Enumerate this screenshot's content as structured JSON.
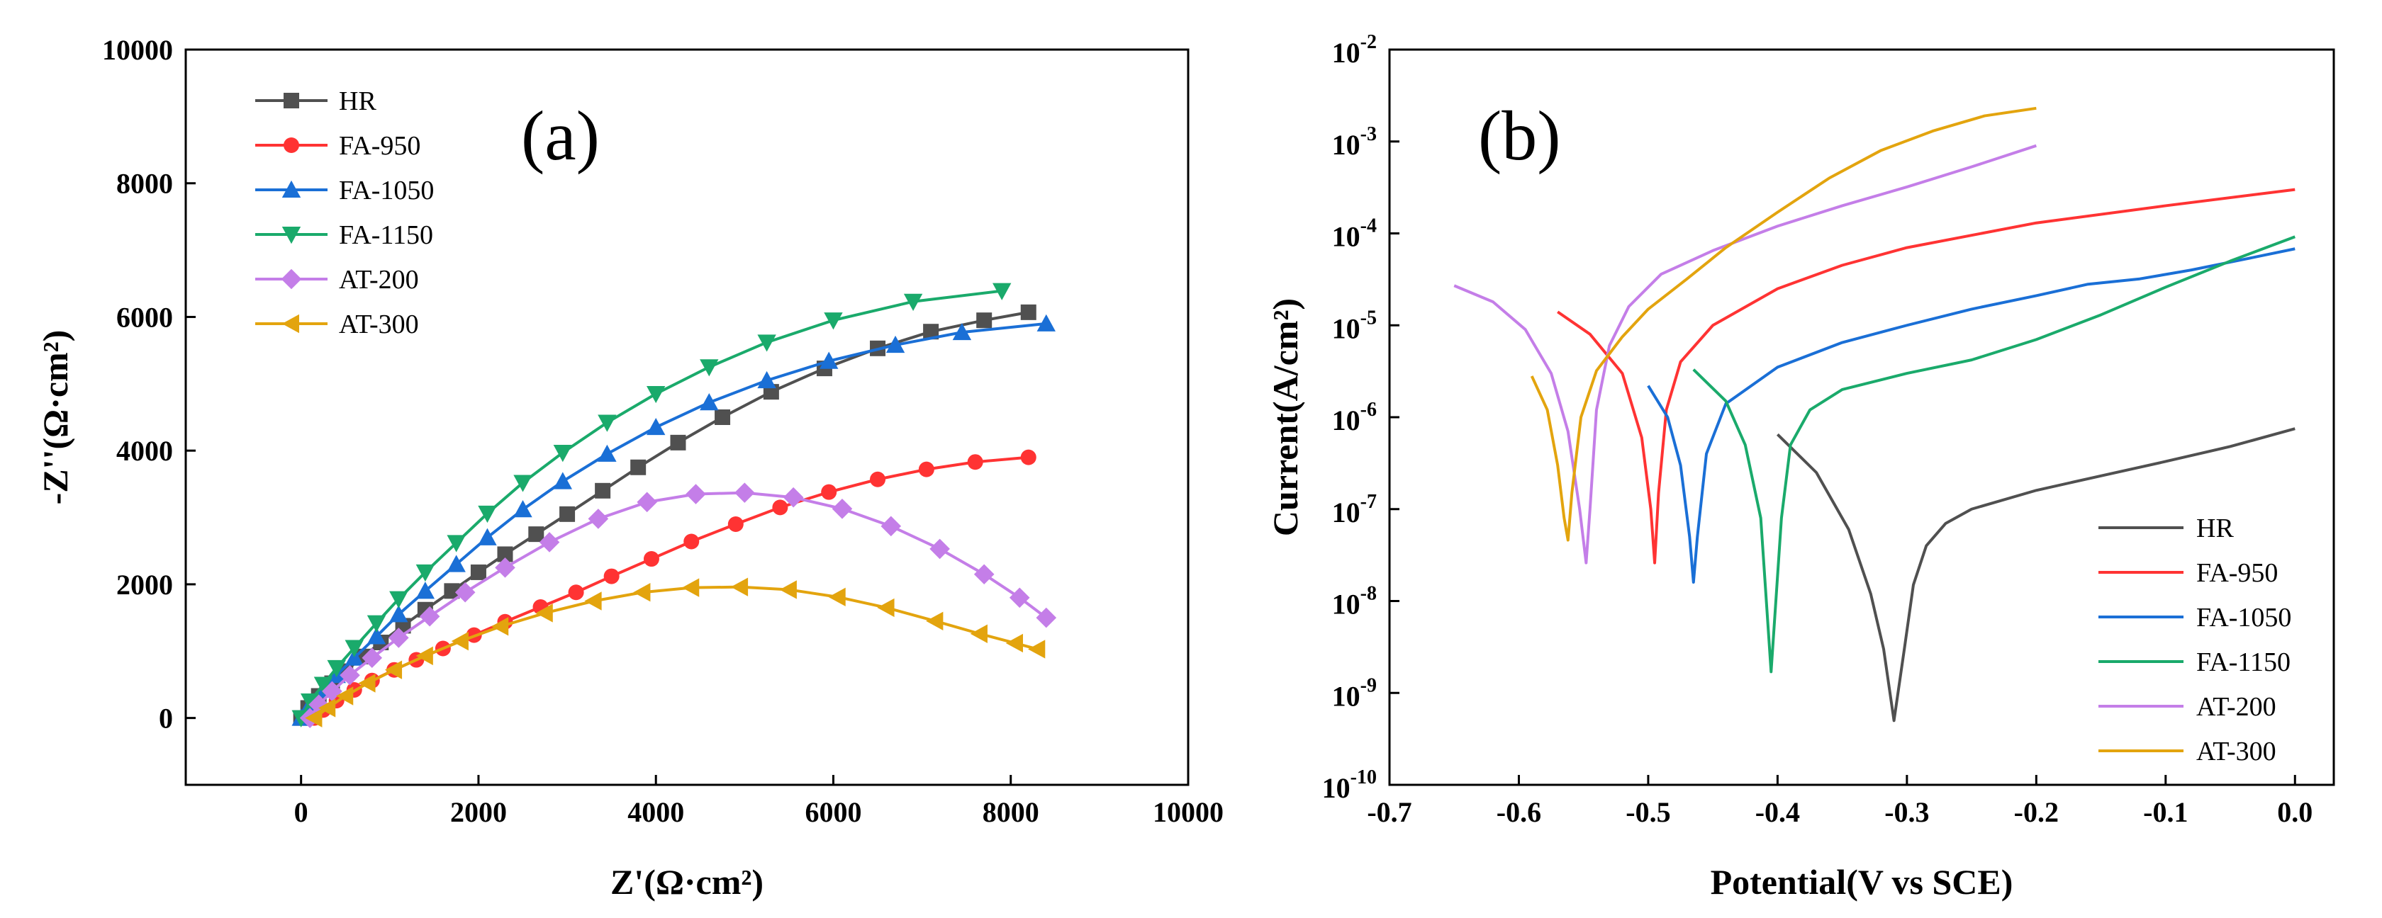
{
  "colors": {
    "HR": "#505050",
    "FA-950": "#ff3333",
    "FA-1050": "#1a6fd6",
    "FA-1150": "#1aaa6b",
    "AT-200": "#c47ee8",
    "AT-300": "#e3a40e"
  },
  "chart_data": [
    {
      "type": "line",
      "panel_label": "(a)",
      "xlabel": "Z'(Ω·cm²)",
      "ylabel": "-Z''(Ω·cm²)",
      "xlim": [
        -1300,
        10000
      ],
      "ylim": [
        -1000,
        10000
      ],
      "xticks": [
        0,
        2000,
        4000,
        6000,
        8000,
        10000
      ],
      "yticks": [
        0,
        2000,
        4000,
        6000,
        8000,
        10000
      ],
      "xtick_labels": [
        "0",
        "2000",
        "4000",
        "6000",
        "8000",
        "10000"
      ],
      "ytick_labels": [
        "0",
        "2000",
        "4000",
        "6000",
        "8000",
        "10000"
      ],
      "grid": false,
      "legend_position": "top-left",
      "series": [
        {
          "name": "HR",
          "marker": "square",
          "points": [
            [
              0,
              0
            ],
            [
              80,
              150
            ],
            [
              200,
              330
            ],
            [
              350,
              520
            ],
            [
              500,
              700
            ],
            [
              700,
              920
            ],
            [
              900,
              1130
            ],
            [
              1150,
              1380
            ],
            [
              1400,
              1620
            ],
            [
              1700,
              1900
            ],
            [
              2000,
              2180
            ],
            [
              2300,
              2450
            ],
            [
              2650,
              2750
            ],
            [
              3000,
              3050
            ],
            [
              3400,
              3400
            ],
            [
              3800,
              3750
            ],
            [
              4250,
              4120
            ],
            [
              4750,
              4500
            ],
            [
              5300,
              4880
            ],
            [
              5900,
              5230
            ],
            [
              6500,
              5530
            ],
            [
              7100,
              5780
            ],
            [
              7700,
              5950
            ],
            [
              8200,
              6070
            ]
          ]
        },
        {
          "name": "FA-950",
          "marker": "circle",
          "points": [
            [
              150,
              0
            ],
            [
              250,
              120
            ],
            [
              400,
              260
            ],
            [
              600,
              420
            ],
            [
              800,
              560
            ],
            [
              1050,
              720
            ],
            [
              1300,
              870
            ],
            [
              1600,
              1040
            ],
            [
              1950,
              1240
            ],
            [
              2300,
              1440
            ],
            [
              2700,
              1660
            ],
            [
              3100,
              1880
            ],
            [
              3500,
              2120
            ],
            [
              3950,
              2380
            ],
            [
              4400,
              2640
            ],
            [
              4900,
              2900
            ],
            [
              5400,
              3150
            ],
            [
              5950,
              3380
            ],
            [
              6500,
              3570
            ],
            [
              7050,
              3720
            ],
            [
              7600,
              3830
            ],
            [
              8200,
              3900
            ]
          ]
        },
        {
          "name": "FA-1050",
          "marker": "triangle-up",
          "points": [
            [
              0,
              0
            ],
            [
              100,
              200
            ],
            [
              250,
              420
            ],
            [
              400,
              640
            ],
            [
              600,
              900
            ],
            [
              850,
              1220
            ],
            [
              1100,
              1550
            ],
            [
              1400,
              1900
            ],
            [
              1750,
              2300
            ],
            [
              2100,
              2700
            ],
            [
              2500,
              3120
            ],
            [
              2950,
              3540
            ],
            [
              3450,
              3950
            ],
            [
              4000,
              4350
            ],
            [
              4600,
              4720
            ],
            [
              5250,
              5050
            ],
            [
              5950,
              5340
            ],
            [
              6700,
              5580
            ],
            [
              7450,
              5770
            ],
            [
              8400,
              5900
            ]
          ]
        },
        {
          "name": "FA-1150",
          "marker": "triangle-down",
          "points": [
            [
              0,
              0
            ],
            [
              100,
              250
            ],
            [
              250,
              500
            ],
            [
              400,
              750
            ],
            [
              600,
              1050
            ],
            [
              850,
              1420
            ],
            [
              1100,
              1780
            ],
            [
              1400,
              2180
            ],
            [
              1750,
              2620
            ],
            [
              2100,
              3060
            ],
            [
              2500,
              3520
            ],
            [
              2950,
              3970
            ],
            [
              3450,
              4420
            ],
            [
              4000,
              4850
            ],
            [
              4600,
              5250
            ],
            [
              5250,
              5620
            ],
            [
              6000,
              5950
            ],
            [
              6900,
              6230
            ],
            [
              7900,
              6390
            ]
          ]
        },
        {
          "name": "AT-200",
          "marker": "diamond",
          "points": [
            [
              100,
              0
            ],
            [
              200,
              200
            ],
            [
              350,
              400
            ],
            [
              550,
              640
            ],
            [
              800,
              900
            ],
            [
              1100,
              1200
            ],
            [
              1450,
              1520
            ],
            [
              1850,
              1880
            ],
            [
              2300,
              2250
            ],
            [
              2800,
              2630
            ],
            [
              3350,
              2980
            ],
            [
              3900,
              3230
            ],
            [
              4450,
              3350
            ],
            [
              5000,
              3370
            ],
            [
              5550,
              3300
            ],
            [
              6100,
              3130
            ],
            [
              6650,
              2870
            ],
            [
              7200,
              2530
            ],
            [
              7700,
              2150
            ],
            [
              8100,
              1800
            ],
            [
              8400,
              1500
            ]
          ]
        },
        {
          "name": "AT-300",
          "marker": "triangle-left",
          "points": [
            [
              150,
              0
            ],
            [
              300,
              150
            ],
            [
              500,
              330
            ],
            [
              750,
              520
            ],
            [
              1050,
              720
            ],
            [
              1400,
              930
            ],
            [
              1800,
              1150
            ],
            [
              2250,
              1370
            ],
            [
              2750,
              1570
            ],
            [
              3300,
              1750
            ],
            [
              3850,
              1880
            ],
            [
              4400,
              1950
            ],
            [
              4950,
              1960
            ],
            [
              5500,
              1920
            ],
            [
              6050,
              1810
            ],
            [
              6600,
              1650
            ],
            [
              7150,
              1450
            ],
            [
              7650,
              1260
            ],
            [
              8050,
              1120
            ],
            [
              8300,
              1030
            ]
          ]
        }
      ]
    },
    {
      "type": "line",
      "panel_label": "(b)",
      "xlabel": "Potential(V vs SCE)",
      "ylabel": "Current(A/cm²)",
      "log_y": true,
      "xlim": [
        -0.7,
        0.03
      ],
      "ylim": [
        1e-10,
        0.01
      ],
      "xticks": [
        -0.7,
        -0.6,
        -0.5,
        -0.4,
        -0.3,
        -0.2,
        -0.1,
        0.0
      ],
      "xtick_labels": [
        "-0.7",
        "-0.6",
        "-0.5",
        "-0.4",
        "-0.3",
        "-0.2",
        "-0.1",
        "0.0"
      ],
      "ytick_exponents": [
        -10,
        -9,
        -8,
        -7,
        -6,
        -5,
        -4,
        -3,
        -2
      ],
      "ytick_labels": [
        "10",
        "10",
        "10",
        "10",
        "10",
        "10",
        "10",
        "10",
        "10"
      ],
      "ytick_superscripts": [
        "-10",
        "-9",
        "-8",
        "-7",
        "-6",
        "-5",
        "-4",
        "-3",
        "-2"
      ],
      "grid": false,
      "legend_position": "bottom-right",
      "series": [
        {
          "name": "HR",
          "points": [
            [
              -0.4,
              6.5e-07
            ],
            [
              -0.37,
              2.5e-07
            ],
            [
              -0.345,
              6e-08
            ],
            [
              -0.328,
              1.2e-08
            ],
            [
              -0.318,
              3e-09
            ],
            [
              -0.31,
              5e-10
            ],
            [
              -0.302,
              3e-09
            ],
            [
              -0.295,
              1.5e-08
            ],
            [
              -0.285,
              4e-08
            ],
            [
              -0.27,
              7e-08
            ],
            [
              -0.25,
              1e-07
            ],
            [
              -0.2,
              1.6e-07
            ],
            [
              -0.15,
              2.3e-07
            ],
            [
              -0.1,
              3.3e-07
            ],
            [
              -0.05,
              4.8e-07
            ],
            [
              0.0,
              7.5e-07
            ]
          ]
        },
        {
          "name": "FA-950",
          "points": [
            [
              -0.57,
              1.4e-05
            ],
            [
              -0.545,
              8e-06
            ],
            [
              -0.52,
              3e-06
            ],
            [
              -0.505,
              6e-07
            ],
            [
              -0.498,
              1e-07
            ],
            [
              -0.495,
              2.6e-08
            ],
            [
              -0.492,
              1.5e-07
            ],
            [
              -0.486,
              1.2e-06
            ],
            [
              -0.475,
              4e-06
            ],
            [
              -0.45,
              1e-05
            ],
            [
              -0.4,
              2.5e-05
            ],
            [
              -0.35,
              4.5e-05
            ],
            [
              -0.3,
              7e-05
            ],
            [
              -0.2,
              0.00013
            ],
            [
              -0.1,
              0.0002
            ],
            [
              0.0,
              0.0003
            ]
          ]
        },
        {
          "name": "FA-1050",
          "points": [
            [
              -0.5,
              2.2e-06
            ],
            [
              -0.485,
              1e-06
            ],
            [
              -0.475,
              3e-07
            ],
            [
              -0.468,
              5e-08
            ],
            [
              -0.465,
              1.6e-08
            ],
            [
              -0.462,
              5e-08
            ],
            [
              -0.455,
              4e-07
            ],
            [
              -0.44,
              1.4e-06
            ],
            [
              -0.4,
              3.5e-06
            ],
            [
              -0.35,
              6.5e-06
            ],
            [
              -0.3,
              1e-05
            ],
            [
              -0.25,
              1.5e-05
            ],
            [
              -0.2,
              2.1e-05
            ],
            [
              -0.16,
              2.8e-05
            ],
            [
              -0.12,
              3.2e-05
            ],
            [
              -0.08,
              4e-05
            ],
            [
              -0.04,
              5.2e-05
            ],
            [
              0.0,
              6.8e-05
            ]
          ]
        },
        {
          "name": "FA-1150",
          "points": [
            [
              -0.465,
              3.3e-06
            ],
            [
              -0.44,
              1.5e-06
            ],
            [
              -0.425,
              5e-07
            ],
            [
              -0.413,
              8e-08
            ],
            [
              -0.405,
              1.7e-09
            ],
            [
              -0.397,
              8e-08
            ],
            [
              -0.39,
              5e-07
            ],
            [
              -0.375,
              1.2e-06
            ],
            [
              -0.35,
              2e-06
            ],
            [
              -0.3,
              3e-06
            ],
            [
              -0.25,
              4.2e-06
            ],
            [
              -0.2,
              7e-06
            ],
            [
              -0.15,
              1.3e-05
            ],
            [
              -0.1,
              2.6e-05
            ],
            [
              -0.05,
              5e-05
            ],
            [
              0.0,
              9.2e-05
            ]
          ]
        },
        {
          "name": "AT-200",
          "points": [
            [
              -0.65,
              2.7e-05
            ],
            [
              -0.62,
              1.8e-05
            ],
            [
              -0.595,
              9e-06
            ],
            [
              -0.575,
              3e-06
            ],
            [
              -0.562,
              7e-07
            ],
            [
              -0.553,
              1e-07
            ],
            [
              -0.548,
              2.6e-08
            ],
            [
              -0.545,
              1e-07
            ],
            [
              -0.54,
              1.2e-06
            ],
            [
              -0.53,
              6e-06
            ],
            [
              -0.515,
              1.6e-05
            ],
            [
              -0.49,
              3.6e-05
            ],
            [
              -0.45,
              6.5e-05
            ],
            [
              -0.4,
              0.00012
            ],
            [
              -0.35,
              0.0002
            ],
            [
              -0.3,
              0.00032
            ],
            [
              -0.25,
              0.00053
            ],
            [
              -0.2,
              0.0009
            ]
          ]
        },
        {
          "name": "AT-300",
          "points": [
            [
              -0.59,
              2.8e-06
            ],
            [
              -0.578,
              1.2e-06
            ],
            [
              -0.57,
              3e-07
            ],
            [
              -0.565,
              8e-08
            ],
            [
              -0.562,
              4.6e-08
            ],
            [
              -0.559,
              1.5e-07
            ],
            [
              -0.552,
              1e-06
            ],
            [
              -0.54,
              3.2e-06
            ],
            [
              -0.52,
              7.5e-06
            ],
            [
              -0.5,
              1.5e-05
            ],
            [
              -0.47,
              3.2e-05
            ],
            [
              -0.44,
              7e-05
            ],
            [
              -0.4,
              0.00017
            ],
            [
              -0.36,
              0.0004
            ],
            [
              -0.32,
              0.0008
            ],
            [
              -0.28,
              0.0013
            ],
            [
              -0.24,
              0.0019
            ],
            [
              -0.2,
              0.0023
            ]
          ]
        }
      ]
    }
  ]
}
